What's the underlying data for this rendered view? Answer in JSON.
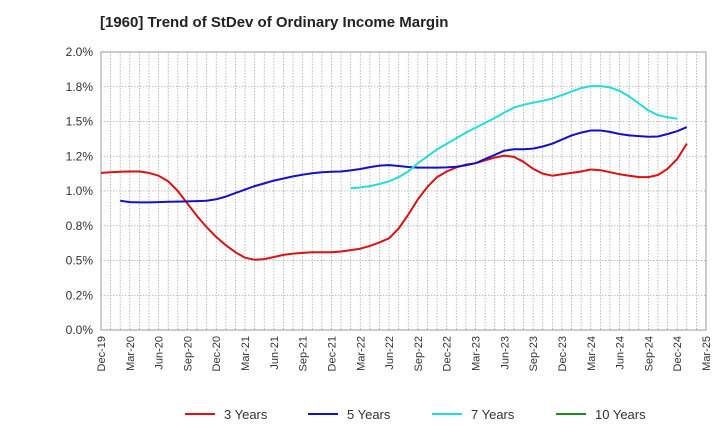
{
  "chart_data": {
    "type": "line",
    "title": "[1960]  Trend of StDev of Ordinary Income Margin",
    "xlabel": "",
    "ylabel": "",
    "ylim": [
      0,
      2.0
    ],
    "yticks": [
      0.0,
      0.25,
      0.5,
      0.75,
      1.0,
      1.25,
      1.5,
      1.75,
      2.0
    ],
    "ytick_labels": [
      "0.0%",
      "0.2%",
      "0.5%",
      "0.8%",
      "1.0%",
      "1.2%",
      "1.5%",
      "1.8%",
      "2.0%"
    ],
    "x_start": "2019-12",
    "x_end": "2025-03",
    "xtick_labels": [
      "Dec-19",
      "Mar-20",
      "Jun-20",
      "Sep-20",
      "Dec-20",
      "Mar-21",
      "Jun-21",
      "Sep-21",
      "Dec-21",
      "Mar-22",
      "Jun-22",
      "Sep-22",
      "Dec-22",
      "Mar-23",
      "Jun-23",
      "Sep-23",
      "Dec-23",
      "Mar-24",
      "Jun-24",
      "Sep-24",
      "Dec-24",
      "Mar-25"
    ],
    "grid": true,
    "legend_position": "bottom",
    "series": [
      {
        "name": "3 Years",
        "color": "#dd1111",
        "points": [
          [
            "2019-12",
            1.13
          ],
          [
            "2020-01",
            1.135
          ],
          [
            "2020-02",
            1.138
          ],
          [
            "2020-03",
            1.14
          ],
          [
            "2020-04",
            1.14
          ],
          [
            "2020-05",
            1.13
          ],
          [
            "2020-06",
            1.11
          ],
          [
            "2020-07",
            1.07
          ],
          [
            "2020-08",
            1.0
          ],
          [
            "2020-09",
            0.91
          ],
          [
            "2020-10",
            0.82
          ],
          [
            "2020-11",
            0.74
          ],
          [
            "2020-12",
            0.67
          ],
          [
            "2021-01",
            0.61
          ],
          [
            "2021-02",
            0.56
          ],
          [
            "2021-03",
            0.52
          ],
          [
            "2021-04",
            0.505
          ],
          [
            "2021-05",
            0.51
          ],
          [
            "2021-06",
            0.525
          ],
          [
            "2021-07",
            0.54
          ],
          [
            "2021-08",
            0.55
          ],
          [
            "2021-09",
            0.555
          ],
          [
            "2021-10",
            0.56
          ],
          [
            "2021-11",
            0.56
          ],
          [
            "2021-12",
            0.56
          ],
          [
            "2022-01",
            0.565
          ],
          [
            "2022-02",
            0.575
          ],
          [
            "2022-03",
            0.585
          ],
          [
            "2022-04",
            0.605
          ],
          [
            "2022-05",
            0.63
          ],
          [
            "2022-06",
            0.66
          ],
          [
            "2022-07",
            0.73
          ],
          [
            "2022-08",
            0.83
          ],
          [
            "2022-09",
            0.94
          ],
          [
            "2022-10",
            1.03
          ],
          [
            "2022-11",
            1.1
          ],
          [
            "2022-12",
            1.14
          ],
          [
            "2023-01",
            1.17
          ],
          [
            "2023-02",
            1.19
          ],
          [
            "2023-03",
            1.2
          ],
          [
            "2023-04",
            1.22
          ],
          [
            "2023-05",
            1.24
          ],
          [
            "2023-06",
            1.255
          ],
          [
            "2023-07",
            1.245
          ],
          [
            "2023-08",
            1.21
          ],
          [
            "2023-09",
            1.16
          ],
          [
            "2023-10",
            1.125
          ],
          [
            "2023-11",
            1.11
          ],
          [
            "2023-12",
            1.12
          ],
          [
            "2024-01",
            1.13
          ],
          [
            "2024-02",
            1.14
          ],
          [
            "2024-03",
            1.155
          ],
          [
            "2024-04",
            1.15
          ],
          [
            "2024-05",
            1.135
          ],
          [
            "2024-06",
            1.12
          ],
          [
            "2024-07",
            1.11
          ],
          [
            "2024-08",
            1.1
          ],
          [
            "2024-09",
            1.1
          ],
          [
            "2024-10",
            1.115
          ],
          [
            "2024-11",
            1.16
          ],
          [
            "2024-12",
            1.23
          ],
          [
            "2025-01",
            1.34
          ]
        ]
      },
      {
        "name": "5 Years",
        "color": "#1111cc",
        "points": [
          [
            "2020-02",
            0.93
          ],
          [
            "2020-03",
            0.92
          ],
          [
            "2020-04",
            0.918
          ],
          [
            "2020-05",
            0.918
          ],
          [
            "2020-06",
            0.92
          ],
          [
            "2020-07",
            0.922
          ],
          [
            "2020-08",
            0.924
          ],
          [
            "2020-09",
            0.925
          ],
          [
            "2020-10",
            0.927
          ],
          [
            "2020-11",
            0.93
          ],
          [
            "2020-12",
            0.94
          ],
          [
            "2021-01",
            0.96
          ],
          [
            "2021-02",
            0.985
          ],
          [
            "2021-03",
            1.01
          ],
          [
            "2021-04",
            1.035
          ],
          [
            "2021-05",
            1.055
          ],
          [
            "2021-06",
            1.075
          ],
          [
            "2021-07",
            1.09
          ],
          [
            "2021-08",
            1.105
          ],
          [
            "2021-09",
            1.117
          ],
          [
            "2021-10",
            1.128
          ],
          [
            "2021-11",
            1.135
          ],
          [
            "2021-12",
            1.138
          ],
          [
            "2022-01",
            1.14
          ],
          [
            "2022-02",
            1.148
          ],
          [
            "2022-03",
            1.158
          ],
          [
            "2022-04",
            1.172
          ],
          [
            "2022-05",
            1.183
          ],
          [
            "2022-06",
            1.186
          ],
          [
            "2022-07",
            1.18
          ],
          [
            "2022-08",
            1.173
          ],
          [
            "2022-09",
            1.168
          ],
          [
            "2022-10",
            1.168
          ],
          [
            "2022-11",
            1.168
          ],
          [
            "2022-12",
            1.17
          ],
          [
            "2023-01",
            1.175
          ],
          [
            "2023-02",
            1.185
          ],
          [
            "2023-03",
            1.2
          ],
          [
            "2023-04",
            1.23
          ],
          [
            "2023-05",
            1.26
          ],
          [
            "2023-06",
            1.29
          ],
          [
            "2023-07",
            1.3
          ],
          [
            "2023-08",
            1.3
          ],
          [
            "2023-09",
            1.305
          ],
          [
            "2023-10",
            1.32
          ],
          [
            "2023-11",
            1.34
          ],
          [
            "2023-12",
            1.37
          ],
          [
            "2024-01",
            1.4
          ],
          [
            "2024-02",
            1.42
          ],
          [
            "2024-03",
            1.435
          ],
          [
            "2024-04",
            1.435
          ],
          [
            "2024-05",
            1.425
          ],
          [
            "2024-06",
            1.41
          ],
          [
            "2024-07",
            1.4
          ],
          [
            "2024-08",
            1.395
          ],
          [
            "2024-09",
            1.39
          ],
          [
            "2024-10",
            1.392
          ],
          [
            "2024-11",
            1.41
          ],
          [
            "2024-12",
            1.43
          ],
          [
            "2025-01",
            1.46
          ]
        ]
      },
      {
        "name": "7 Years",
        "color": "#22dddd",
        "points": [
          [
            "2022-02",
            1.02
          ],
          [
            "2022-03",
            1.025
          ],
          [
            "2022-04",
            1.035
          ],
          [
            "2022-05",
            1.05
          ],
          [
            "2022-06",
            1.07
          ],
          [
            "2022-07",
            1.1
          ],
          [
            "2022-08",
            1.14
          ],
          [
            "2022-09",
            1.2
          ],
          [
            "2022-10",
            1.25
          ],
          [
            "2022-11",
            1.3
          ],
          [
            "2022-12",
            1.34
          ],
          [
            "2023-01",
            1.38
          ],
          [
            "2023-02",
            1.42
          ],
          [
            "2023-03",
            1.455
          ],
          [
            "2023-04",
            1.49
          ],
          [
            "2023-05",
            1.525
          ],
          [
            "2023-06",
            1.565
          ],
          [
            "2023-07",
            1.6
          ],
          [
            "2023-08",
            1.62
          ],
          [
            "2023-09",
            1.635
          ],
          [
            "2023-10",
            1.648
          ],
          [
            "2023-11",
            1.665
          ],
          [
            "2023-12",
            1.69
          ],
          [
            "2024-01",
            1.715
          ],
          [
            "2024-02",
            1.74
          ],
          [
            "2024-03",
            1.755
          ],
          [
            "2024-04",
            1.755
          ],
          [
            "2024-05",
            1.745
          ],
          [
            "2024-06",
            1.72
          ],
          [
            "2024-07",
            1.68
          ],
          [
            "2024-08",
            1.63
          ],
          [
            "2024-09",
            1.58
          ],
          [
            "2024-10",
            1.545
          ],
          [
            "2024-11",
            1.53
          ],
          [
            "2024-12",
            1.52
          ]
        ]
      },
      {
        "name": "10 Years",
        "color": "#228822",
        "points": []
      }
    ]
  }
}
